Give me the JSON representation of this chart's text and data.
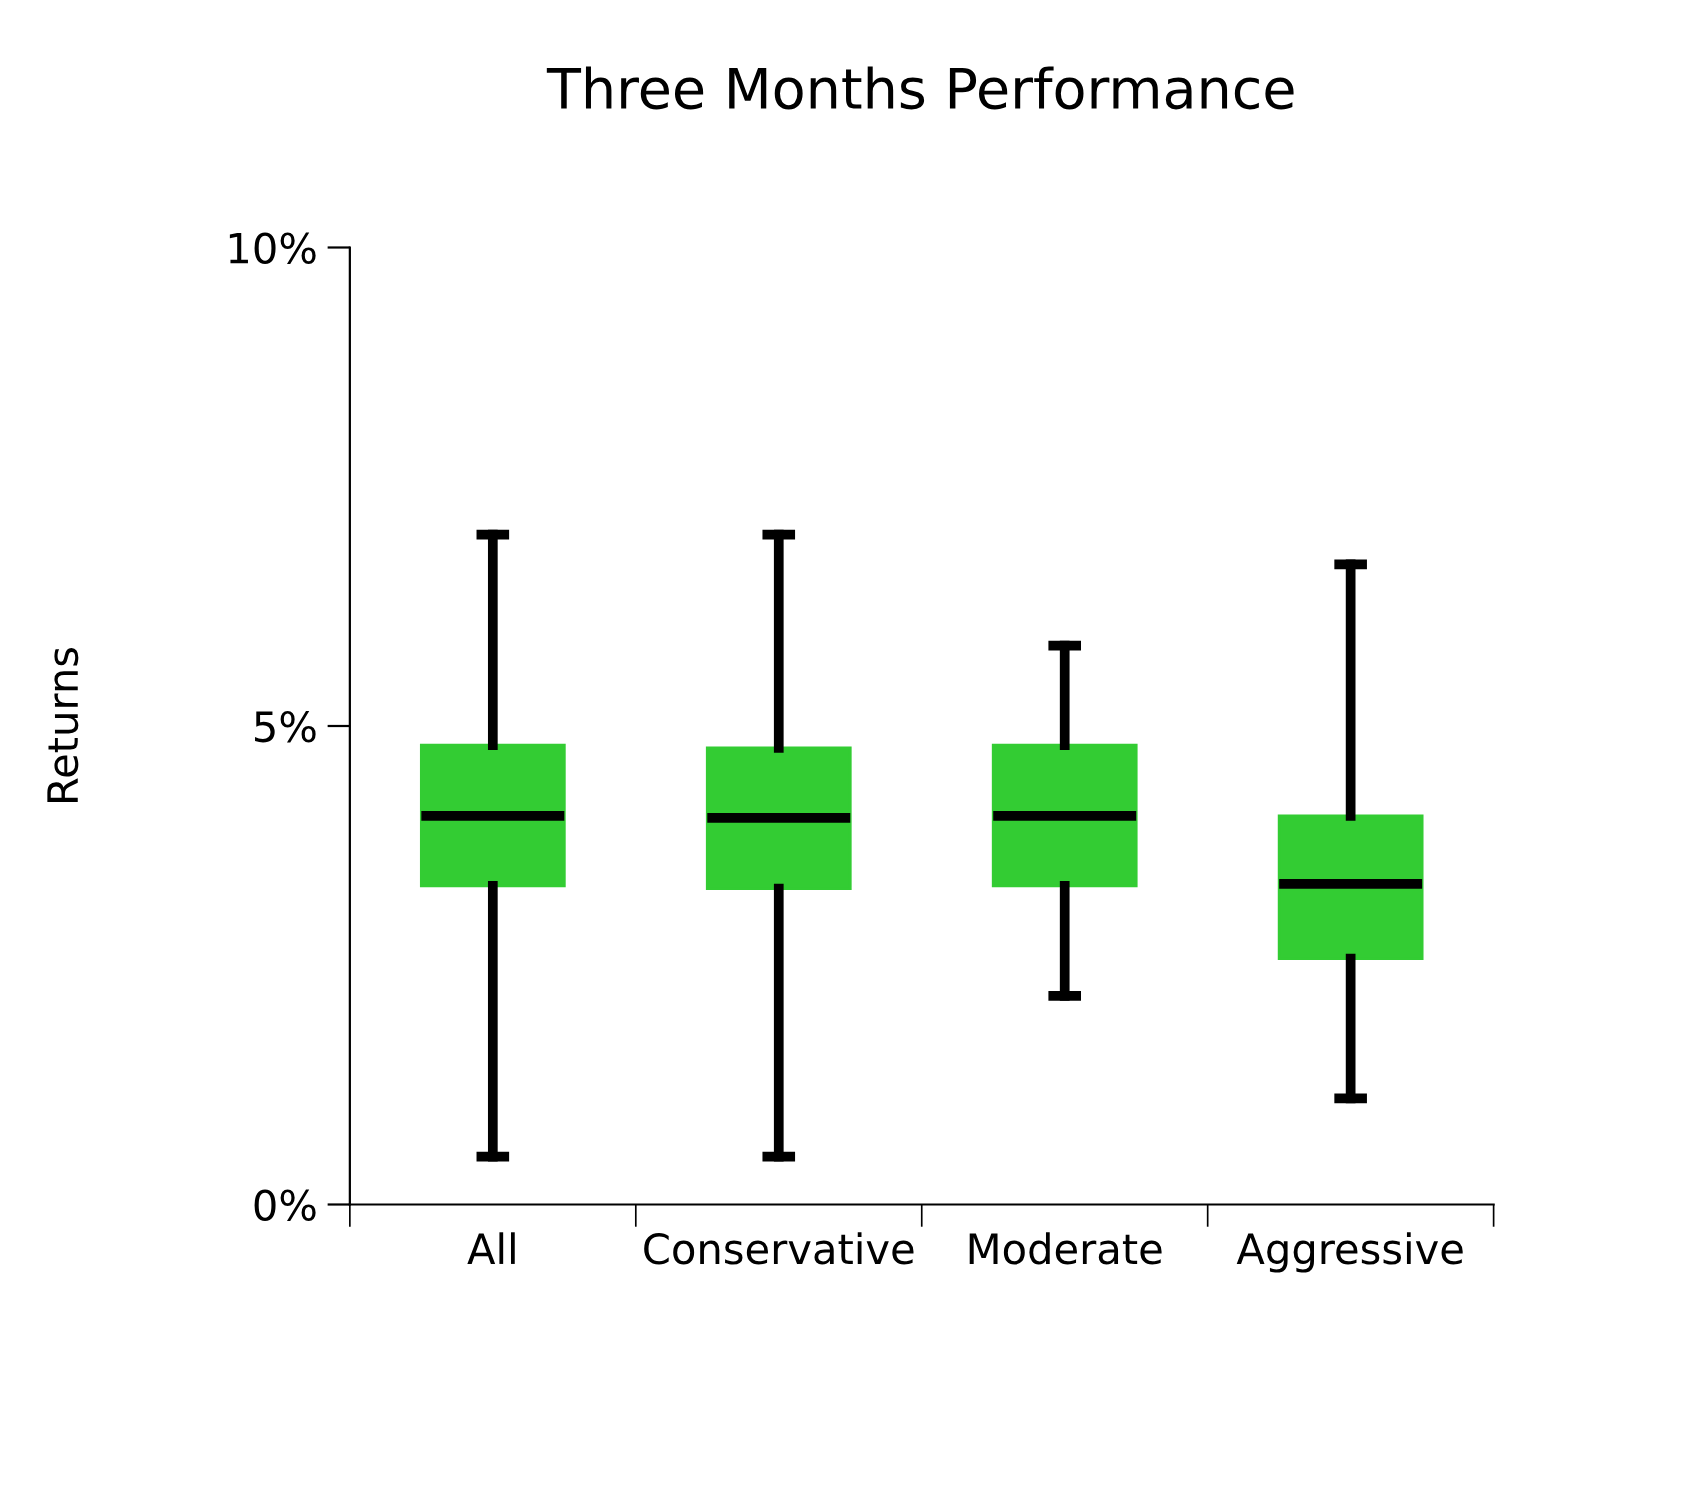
{
  "chart_data": {
    "type": "box",
    "title": "Three Months Performance",
    "ylabel": "Returns",
    "categories": [
      "All",
      "Conservative",
      "Moderate",
      "Aggressive"
    ],
    "boxes": [
      {
        "low": 0.5,
        "q1": 3.33,
        "median": 4.06,
        "q3": 4.8,
        "high": 7.0
      },
      {
        "low": 0.5,
        "q1": 3.3,
        "median": 4.04,
        "q3": 4.77,
        "high": 7.0
      },
      {
        "low": 2.18,
        "q1": 3.33,
        "median": 4.06,
        "q3": 4.8,
        "high": 5.84
      },
      {
        "low": 1.11,
        "q1": 2.57,
        "median": 3.35,
        "q3": 4.06,
        "high": 6.69
      }
    ],
    "color": "#33cc33",
    "ylim": [
      0,
      10
    ],
    "yticks": [
      {
        "value": 0,
        "label": "0%"
      },
      {
        "value": 5,
        "label": "5%"
      },
      {
        "value": 10,
        "label": "10%"
      }
    ],
    "grid": false
  }
}
